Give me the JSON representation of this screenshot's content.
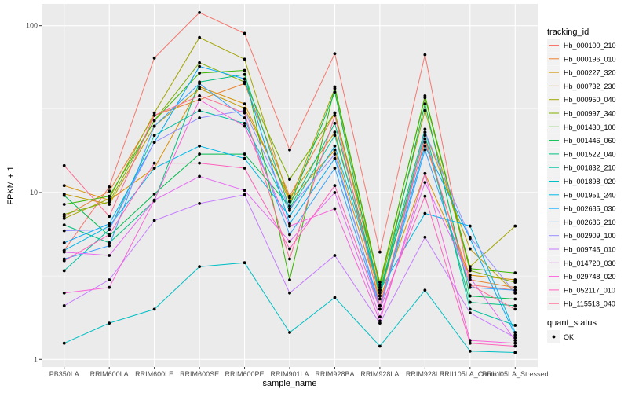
{
  "chart_data": {
    "type": "line",
    "xlabel": "sample_name",
    "ylabel": "FPKM + 1",
    "y_scale": "log10",
    "ylim": [
      0.9,
      135
    ],
    "y_ticks": [
      1,
      10,
      100
    ],
    "y_tick_labels": [
      "1",
      "10",
      "100"
    ],
    "grid": true,
    "categories": [
      "PB350LA",
      "RRIM600LA",
      "RRIM600LE",
      "RRIM600SE",
      "RRIM600PE",
      "RRIM901LA",
      "RRIM928BA",
      "RRIM928LA",
      "RRIM928LE",
      "RRII105LA_Control",
      "RRII105LA_Stressed"
    ],
    "x_tick_labels": [
      "PB350LA",
      "RRIM600LA",
      "RRIM600LE",
      "RRIM600SE",
      "RRIM600PE",
      "RRIM901LA",
      "RRIM928BA",
      "RRIM928LA",
      "RRIM928LE",
      "RRII105LA_Control",
      "RRII105LA_Stressed"
    ],
    "series": [
      {
        "name": "Hb_000100_210",
        "color": "#F8766D",
        "values": [
          4.5,
          10.8,
          64,
          120,
          90,
          18,
          68,
          4.4,
          67,
          2.8,
          2.6
        ]
      },
      {
        "name": "Hb_000196_010",
        "color": "#EA8331",
        "values": [
          7.2,
          10.2,
          29,
          36,
          45,
          9.5,
          30,
          2.6,
          20,
          3.0,
          2.7
        ]
      },
      {
        "name": "Hb_000227_320",
        "color": "#D89000",
        "values": [
          11.0,
          9.0,
          14,
          43,
          34,
          8.9,
          18,
          2.3,
          13,
          3.2,
          3.0
        ]
      },
      {
        "name": "Hb_000732_230",
        "color": "#C09B00",
        "values": [
          9.8,
          8.5,
          25,
          42,
          32,
          9.3,
          23,
          2.4,
          23,
          4.6,
          2.5
        ]
      },
      {
        "name": "Hb_000950_040",
        "color": "#A3A500",
        "values": [
          7.0,
          9.2,
          30,
          85,
          63,
          8.8,
          42,
          2.7,
          31,
          3.6,
          6.3
        ]
      },
      {
        "name": "Hb_000997_340",
        "color": "#7CAE00",
        "values": [
          7.4,
          8.8,
          27,
          60,
          46,
          12,
          30,
          2.9,
          37,
          3.4,
          2.9
        ]
      },
      {
        "name": "Hb_001430_100",
        "color": "#39B600",
        "values": [
          8.5,
          9.5,
          27,
          52,
          54,
          3.0,
          43,
          2.8,
          38,
          3.5,
          3.3
        ]
      },
      {
        "name": "Hb_001446_060",
        "color": "#00BB4E",
        "values": [
          9.6,
          5.5,
          9.8,
          17,
          17,
          8.3,
          40,
          2.4,
          34,
          2.4,
          2.3
        ]
      },
      {
        "name": "Hb_001522_040",
        "color": "#00BF7D",
        "values": [
          6.4,
          5.0,
          8.9,
          46,
          51,
          8.0,
          26,
          2.5,
          22,
          2.2,
          2.1
        ]
      },
      {
        "name": "Hb_001832_210",
        "color": "#00C1A3",
        "values": [
          3.4,
          6.0,
          22,
          31,
          26,
          7.8,
          22,
          2.6,
          24,
          2.0,
          1.6
        ]
      },
      {
        "name": "Hb_001898_020",
        "color": "#00BFC4",
        "values": [
          1.25,
          1.65,
          2.0,
          3.6,
          3.8,
          1.45,
          2.35,
          1.2,
          2.6,
          1.12,
          1.1
        ]
      },
      {
        "name": "Hb_001951_240",
        "color": "#00B8E7",
        "values": [
          4.5,
          6.3,
          14,
          19,
          16,
          7.2,
          19,
          2.6,
          7.5,
          6.3,
          1.45
        ]
      },
      {
        "name": "Hb_002685_030",
        "color": "#00A9FF",
        "values": [
          5.0,
          6.5,
          20,
          57,
          48,
          6.5,
          16,
          2.1,
          19,
          5.3,
          1.4
        ]
      },
      {
        "name": "Hb_002686_210",
        "color": "#35A2FF",
        "values": [
          4.0,
          4.8,
          25,
          45,
          28,
          5.6,
          14,
          2.0,
          18,
          2.7,
          2.6
        ]
      },
      {
        "name": "Hb_002909_100",
        "color": "#9590FF",
        "values": [
          5.9,
          6.0,
          20,
          28,
          31,
          8.0,
          17,
          2.0,
          23,
          5.4,
          2.5
        ]
      },
      {
        "name": "Hb_009745_010",
        "color": "#C77CFF",
        "values": [
          2.1,
          3.0,
          6.8,
          8.6,
          9.7,
          2.5,
          4.2,
          1.65,
          5.4,
          1.9,
          1.35
        ]
      },
      {
        "name": "Hb_014720_030",
        "color": "#E76BF3",
        "values": [
          4.4,
          4.2,
          9.0,
          12.5,
          10.3,
          5.1,
          10,
          1.8,
          11.5,
          3.1,
          1.3
        ]
      },
      {
        "name": "Hb_029748_020",
        "color": "#FA62DB",
        "values": [
          2.5,
          2.7,
          9.0,
          36,
          25,
          6.3,
          8.0,
          1.7,
          13,
          1.3,
          1.25
        ]
      },
      {
        "name": "Hb_052117_010",
        "color": "#FF62BC",
        "values": [
          3.9,
          5.6,
          15,
          15,
          14,
          4.6,
          11,
          2.0,
          9.5,
          1.25,
          1.2
        ]
      },
      {
        "name": "Hb_115513_040",
        "color": "#FF6C91",
        "values": [
          14.5,
          7.2,
          29,
          38,
          30,
          4.0,
          29,
          2.1,
          21,
          2.8,
          2.0
        ]
      }
    ],
    "legend": {
      "position": "right",
      "title": "tracking_id",
      "shape_title": "quant_status",
      "shape_label": "OK"
    }
  },
  "colors": {
    "panel_background": "#EBEBEB",
    "grid_major": "#FFFFFF",
    "point": "#000000"
  }
}
